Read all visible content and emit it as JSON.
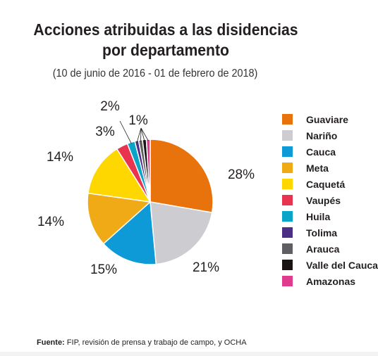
{
  "chart_data": {
    "type": "pie",
    "title_lines": [
      "Acciones atribuidas a las disidencias",
      "por departamento"
    ],
    "subtitle": "(10 de junio de 2016 - 01 de febrero de 2018)",
    "slices": [
      {
        "name": "Guaviare",
        "value": 28,
        "label": "28%",
        "color": "#e8720c"
      },
      {
        "name": "Nariño",
        "value": 21,
        "label": "21%",
        "color": "#cdcdd1"
      },
      {
        "name": "Cauca",
        "value": 15,
        "label": "15%",
        "color": "#0e9ad6"
      },
      {
        "name": "Meta",
        "value": 14,
        "label": "14%",
        "color": "#f0aa16"
      },
      {
        "name": "Caquetá",
        "value": 14,
        "label": "14%",
        "color": "#ffd700"
      },
      {
        "name": "Vaupés",
        "value": 3,
        "label": "3%",
        "color": "#e8344e"
      },
      {
        "name": "Huila",
        "value": 2,
        "label": "2%",
        "color": "#0aa4c8"
      },
      {
        "name": "Tolima",
        "value": 1,
        "label": "1%",
        "color": "#4b2f86"
      },
      {
        "name": "Arauca",
        "value": 1,
        "label": "1%",
        "color": "#5e5e63"
      },
      {
        "name": "Valle del Cauca",
        "value": 1,
        "label": "1%",
        "color": "#1a1414"
      },
      {
        "name": "Amazonas",
        "value": 1,
        "label": "1%",
        "color": "#e03c8e"
      }
    ],
    "legend_position": "right"
  },
  "source": {
    "prefix": "Fuente:",
    "text": " FIP, revisión de prensa y trabajo de campo, y OCHA"
  }
}
